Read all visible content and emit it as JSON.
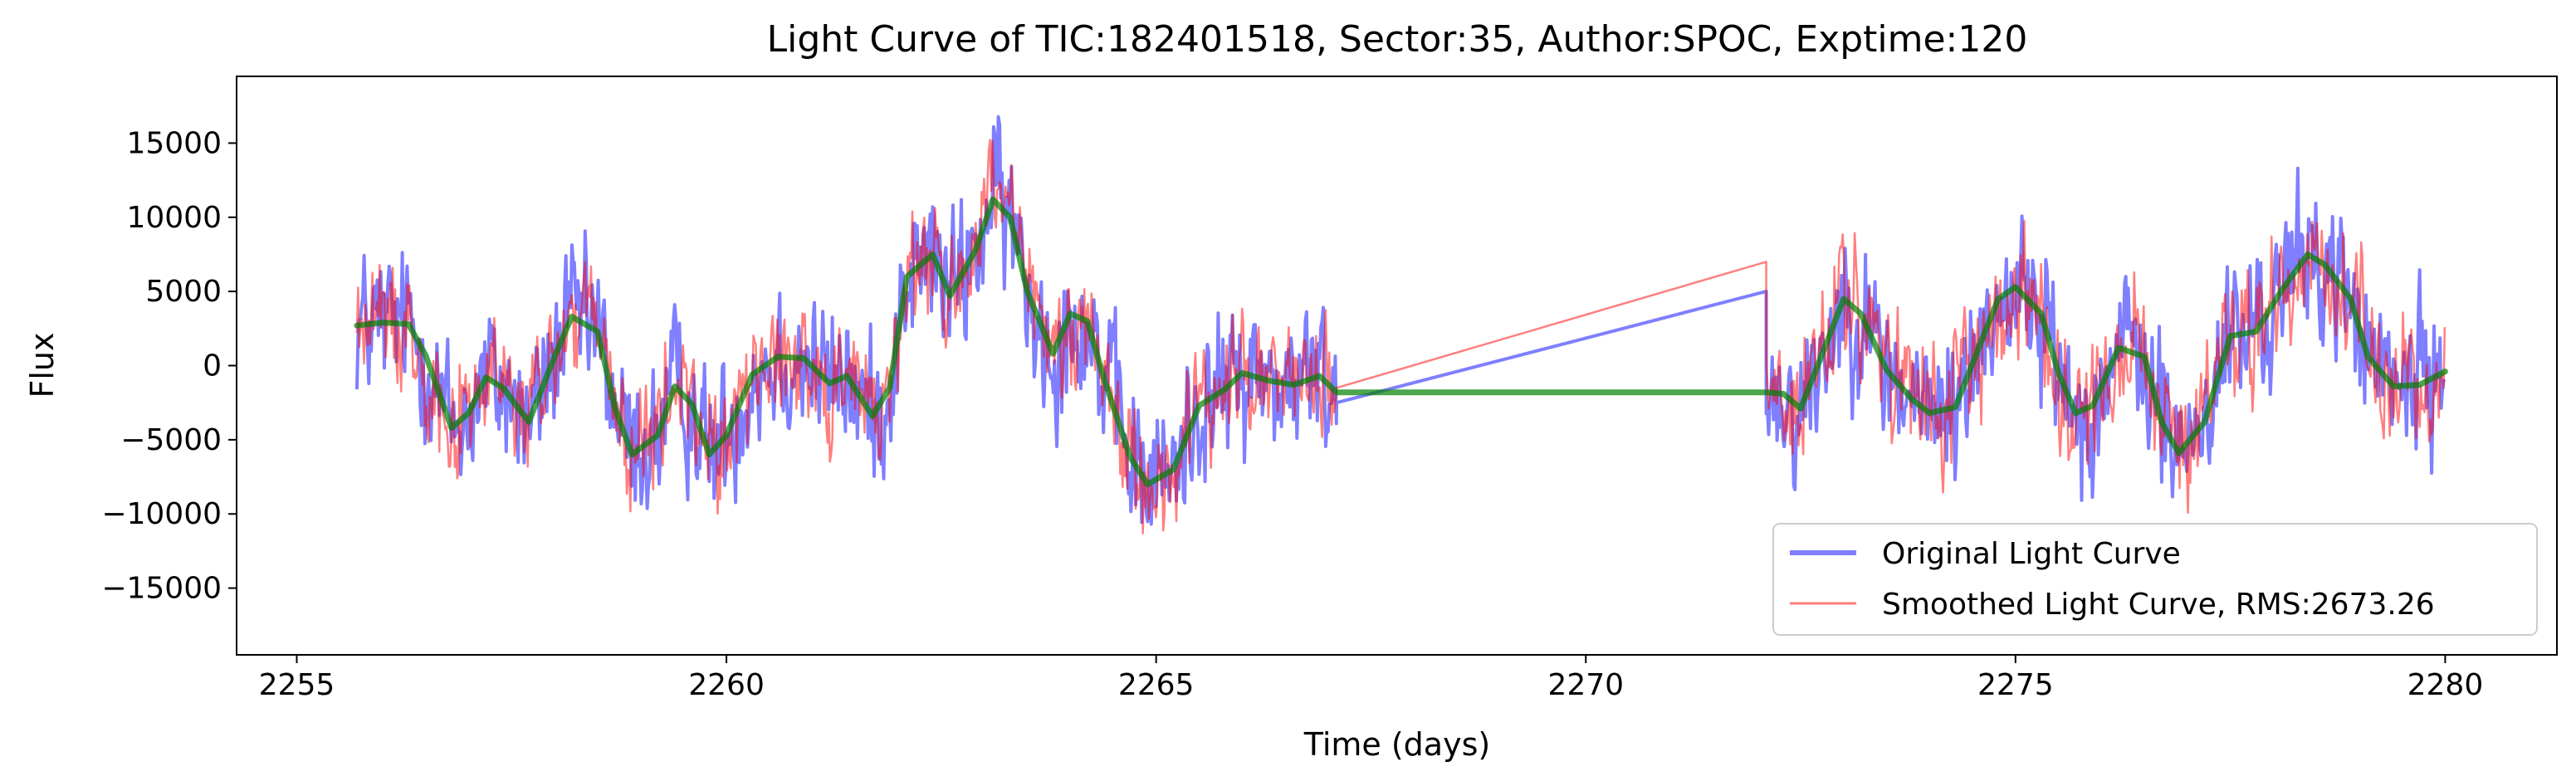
{
  "chart_data": {
    "type": "line",
    "title": "Light Curve of TIC:182401518, Sector:35, Author:SPOC, Exptime:120",
    "xlabel": "Time (days)",
    "ylabel": "Flux",
    "xlim": [
      2254.3,
      2281.3
    ],
    "ylim": [
      -19500,
      19500
    ],
    "xticks": [
      2255,
      2260,
      2265,
      2270,
      2275,
      2280
    ],
    "yticks": [
      -15000,
      -10000,
      -5000,
      0,
      5000,
      10000,
      15000
    ],
    "xtick_labels": [
      "2255",
      "2260",
      "2265",
      "2270",
      "2275",
      "2280"
    ],
    "ytick_labels": [
      "−15000",
      "−10000",
      "−5000",
      "0",
      "5000",
      "10000",
      "15000"
    ],
    "grid": false,
    "legend_position": "lower right",
    "data_gap": [
      2267.1,
      2272.1
    ],
    "series": [
      {
        "name": "Original Light Curve",
        "color": "#0000ff",
        "alpha": 0.5,
        "style": "noisy",
        "amplitude": 3600,
        "gap_connect": [
          [
            2267.1,
            -2500
          ],
          [
            2272.1,
            5000
          ]
        ]
      },
      {
        "name": "Smoothed Light Curve, RMS:2673.26",
        "color": "#ff0000",
        "alpha": 0.5,
        "style": "noisy",
        "amplitude": 3000,
        "gap_connect": [
          [
            2267.1,
            -1500
          ],
          [
            2272.1,
            7000
          ]
        ]
      },
      {
        "name": "",
        "color": "#008000",
        "alpha": 0.7,
        "style": "smooth",
        "x": [
          2255.7,
          2256.0,
          2256.3,
          2256.5,
          2256.8,
          2257.0,
          2257.2,
          2257.4,
          2257.7,
          2258.0,
          2258.2,
          2258.5,
          2258.7,
          2258.9,
          2259.2,
          2259.4,
          2259.6,
          2259.8,
          2260.0,
          2260.3,
          2260.6,
          2260.9,
          2261.2,
          2261.4,
          2261.7,
          2261.9,
          2262.1,
          2262.4,
          2262.6,
          2262.9,
          2263.1,
          2263.3,
          2263.5,
          2263.8,
          2264.0,
          2264.2,
          2264.4,
          2264.7,
          2264.9,
          2265.2,
          2265.5,
          2265.8,
          2266.0,
          2266.3,
          2266.6,
          2266.9,
          2267.1,
          2272.1,
          2272.3,
          2272.5,
          2272.8,
          2273.0,
          2273.2,
          2273.5,
          2273.8,
          2274.0,
          2274.3,
          2274.6,
          2274.8,
          2275.0,
          2275.3,
          2275.5,
          2275.7,
          2275.9,
          2276.2,
          2276.5,
          2276.7,
          2276.9,
          2277.2,
          2277.5,
          2277.8,
          2278.1,
          2278.4,
          2278.6,
          2278.9,
          2279.1,
          2279.4,
          2279.7,
          2280.0
        ],
        "values": [
          2700,
          2900,
          2800,
          700,
          -4200,
          -3200,
          -800,
          -1500,
          -3800,
          600,
          3300,
          2300,
          -2800,
          -6000,
          -4700,
          -1400,
          -2600,
          -6000,
          -4700,
          -600,
          600,
          500,
          -1200,
          -700,
          -3400,
          -1500,
          6000,
          7500,
          4700,
          7800,
          11200,
          10000,
          5000,
          800,
          3500,
          3000,
          -1000,
          -6200,
          -8000,
          -7000,
          -2700,
          -1600,
          -500,
          -1000,
          -1300,
          -700,
          -1800,
          -1800,
          -1900,
          -2900,
          1500,
          4500,
          3500,
          -300,
          -2300,
          -3200,
          -2800,
          1600,
          4500,
          5300,
          3500,
          -500,
          -3200,
          -2700,
          1200,
          600,
          -3800,
          -5900,
          -3800,
          2000,
          2300,
          5100,
          7500,
          6800,
          4500,
          600,
          -1400,
          -1300,
          -400
        ]
      }
    ]
  }
}
